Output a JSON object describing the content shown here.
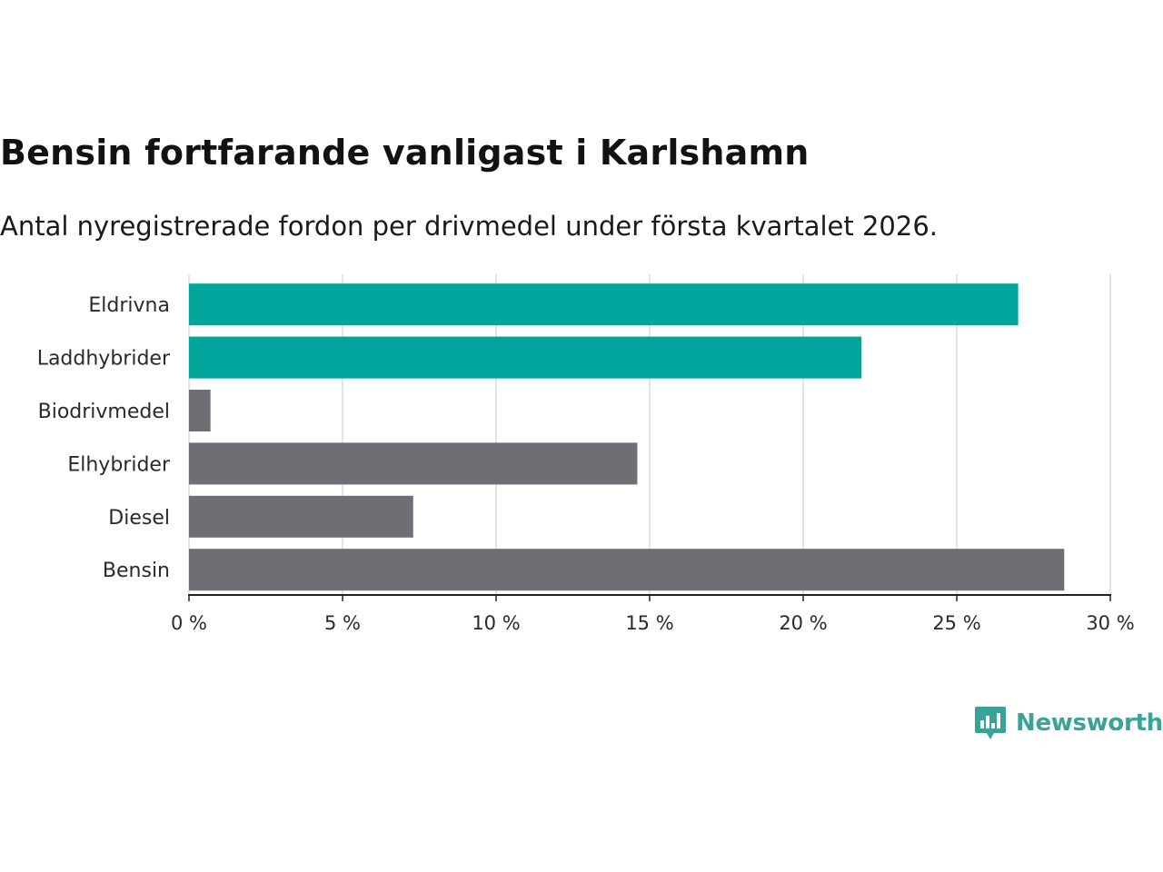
{
  "title": "Bensin fortfarande vanligast i Karlshamn",
  "subtitle": "Antal nyregistrerade fordon per drivmedel under första kvartalet 2026.",
  "brand": {
    "name": "Newsworthy",
    "icon": "newsworthy-logo-icon",
    "color": "#3aa397"
  },
  "colors": {
    "highlight": "#00a59b",
    "default": "#6f6e75",
    "grid": "#dcdcdc",
    "axis": "#222222"
  },
  "chart_data": {
    "type": "bar",
    "orientation": "horizontal",
    "categories": [
      "Eldrivna",
      "Laddhybrider",
      "Biodrivmedel",
      "Elhybrider",
      "Diesel",
      "Bensin"
    ],
    "values": [
      27.0,
      21.9,
      0.7,
      14.6,
      7.3,
      28.5
    ],
    "highlighted": [
      true,
      true,
      false,
      false,
      false,
      false
    ],
    "unit": "%",
    "xlim": [
      0,
      30
    ],
    "xticks": [
      0,
      5,
      10,
      15,
      20,
      25,
      30
    ],
    "xtick_labels": [
      "0 %",
      "5 %",
      "10 %",
      "15 %",
      "20 %",
      "25 %",
      "30 %"
    ],
    "grid": true,
    "xlabel": "",
    "ylabel": ""
  }
}
